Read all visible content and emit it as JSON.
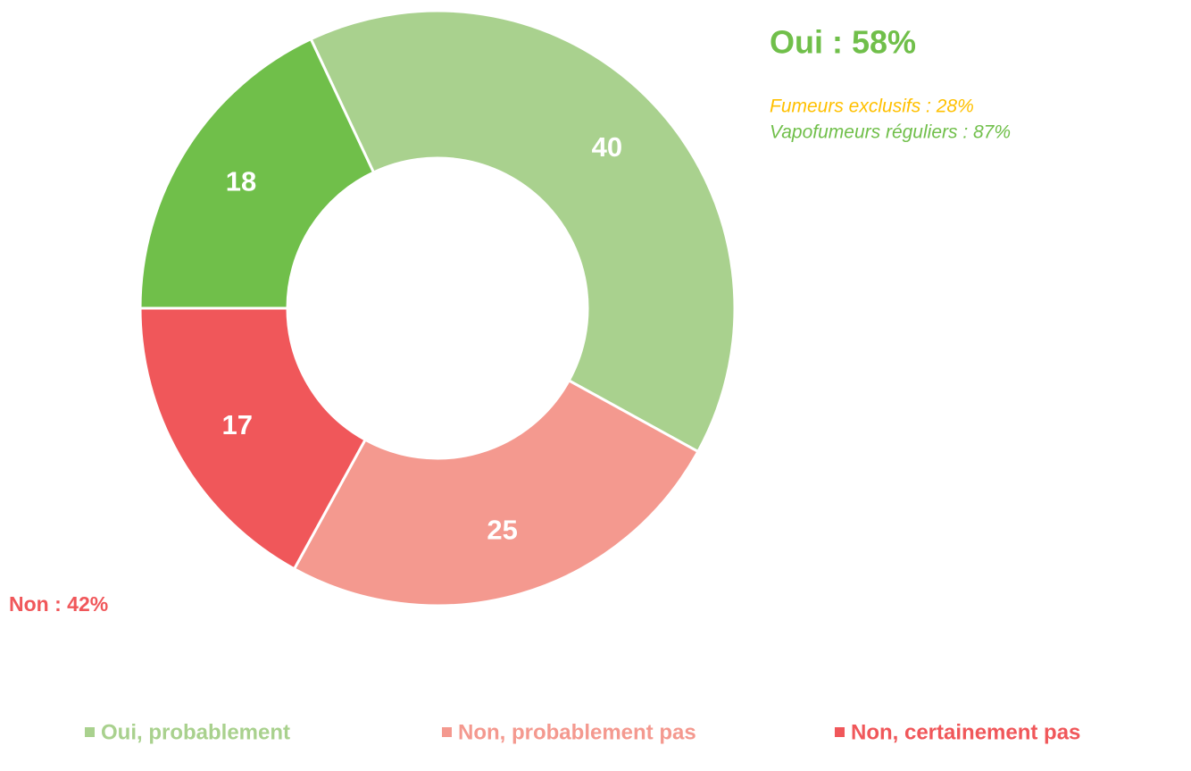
{
  "chart_data": {
    "type": "donut",
    "categories": [
      "Oui, probablement",
      "Non, probablement pas",
      "Non, certainement pas",
      null
    ],
    "values": [
      40,
      25,
      17,
      18
    ],
    "colors": [
      "#a9d18e",
      "#f4998f",
      "#f0575a",
      "#70bf4a"
    ],
    "annotations": [
      "Oui : 58%",
      "Fumeurs exclusifs : 28%",
      "Vapofumeurs réguliers : 87%",
      "Non : 42%"
    ],
    "legend": "bottom"
  }
}
